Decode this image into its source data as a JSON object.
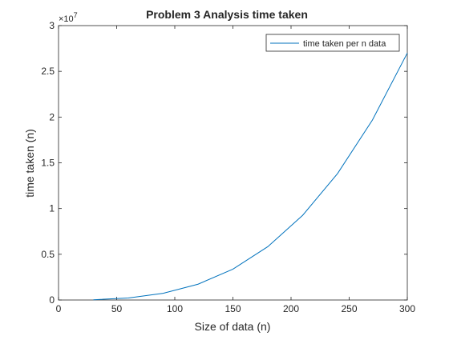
{
  "chart_data": {
    "type": "line",
    "title": "Problem 3 Analysis time taken",
    "xlabel": "Size of data (n)",
    "ylabel": "time taken (n)",
    "exponent_label_base": "×10",
    "exponent_label_power": "7",
    "xlim": [
      0,
      300
    ],
    "ylim": [
      0,
      3
    ],
    "y_scale_factor": 10000000,
    "xticks": [
      0,
      50,
      100,
      150,
      200,
      250,
      300
    ],
    "yticks": [
      0,
      0.5,
      1,
      1.5,
      2,
      2.5,
      3
    ],
    "ytick_labels": [
      "0",
      "0.5",
      "1",
      "1.5",
      "2",
      "2.5",
      "3"
    ],
    "grid": false,
    "legend_position": "top-right",
    "series": [
      {
        "name": "time taken per n data",
        "color": "#0072BD",
        "x": [
          30,
          60,
          90,
          120,
          150,
          180,
          210,
          240,
          270,
          300
        ],
        "y": [
          27000,
          216000,
          729000,
          1728000,
          3375000,
          5832000,
          9261000,
          13824000,
          19683000,
          27000000
        ]
      }
    ]
  }
}
